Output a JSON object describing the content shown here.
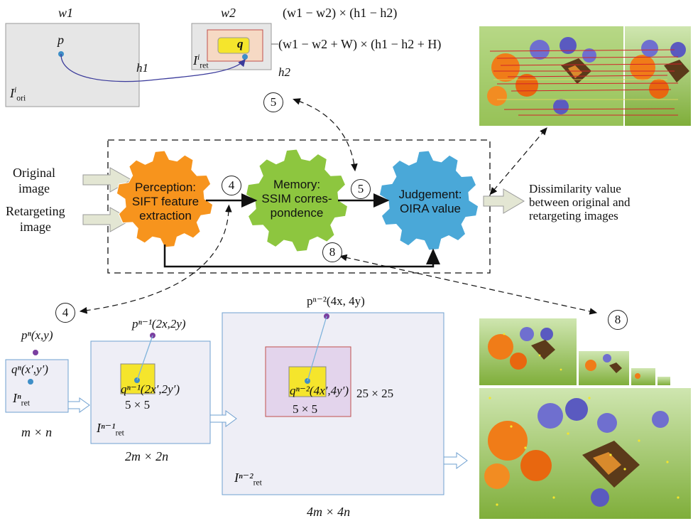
{
  "top_panel": {
    "w1": "w1",
    "w2": "w2",
    "h1": "h1",
    "h2": "h2",
    "p": "p",
    "q": "q",
    "I_ori_base": "I",
    "I_ori_sup": "i",
    "I_ori_sub": "ori",
    "I_ret_base": "I",
    "I_ret_sup": "i",
    "I_ret_sub": "ret",
    "formula1": "(w1 − w2) × (h1 − h2)",
    "formula2": "(w1 − w2 + W) × (h1 − h2 + H)"
  },
  "flow": {
    "input_original": [
      "Original",
      "image"
    ],
    "input_retargeting": [
      "Retargeting",
      "image"
    ],
    "gear_perception": [
      "Perception:",
      "SIFT feature",
      "extraction"
    ],
    "gear_memory": [
      "Memory:",
      "SSIM corres-",
      "pondence"
    ],
    "gear_judgement": [
      "Judgement:",
      "OIRA value"
    ],
    "output": [
      "Dissimilarity value",
      "between original and",
      "retargeting images"
    ],
    "step4": "4",
    "step5": "5",
    "step8": "8"
  },
  "pyramid": {
    "pn": "pⁿ(x,y)",
    "qn": "qⁿ(x′,y′)",
    "Irn": "Iⁿ",
    "Irn_sub": "ret",
    "size_n": "m × n",
    "pn1": "pⁿ⁻¹(2x,2y)",
    "qn1": "qⁿ⁻¹(2x′,2y′)",
    "box5a": "5 × 5",
    "Irn1": "Iⁿ⁻¹",
    "Irn1_sub": "ret",
    "size_n1": "2m × 2n",
    "pn2": "pⁿ⁻²(4x, 4y)",
    "qn2": "qⁿ⁻²(4x′,4y′)",
    "box5b": "5 × 5",
    "box25": "25 × 25",
    "Irn2": "Iⁿ⁻²",
    "Irn2_sub": "ret",
    "size_n2": "4m × 4n"
  },
  "colors": {
    "gear_orange": "#f7941d",
    "gear_green": "#8dc63f",
    "gear_blue": "#4aa8d8",
    "arrow_fill": "#e3e6d3",
    "panel_gray": "#e6e6e6",
    "pyramid_fill": "#eeeef6",
    "highlight_yellow": "#f5e52c",
    "point_blue": "#3e8ec7",
    "point_purple": "#7a3fa0"
  }
}
